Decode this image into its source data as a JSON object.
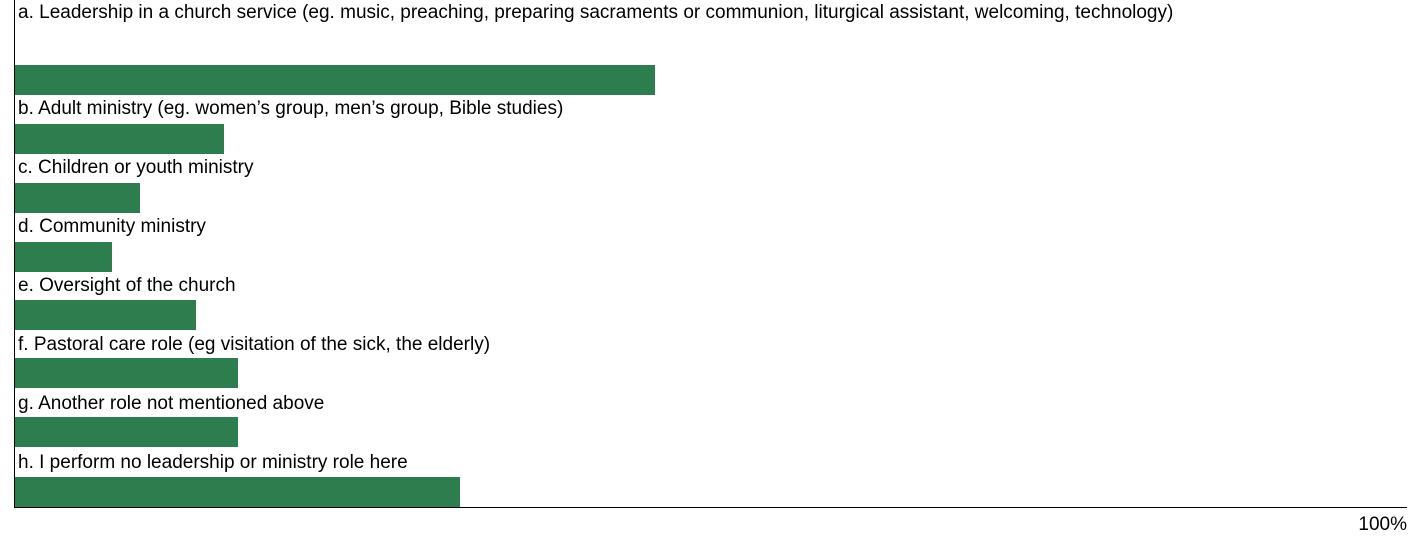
{
  "chart_data": {
    "type": "bar",
    "orientation": "horizontal",
    "categories": [
      "a. Leadership in a church service (eg. music, preaching, preparing sacraments or communion, liturgical assistant, welcoming, technology)",
      "b. Adult ministry (eg. women’s group, men’s group, Bible studies)",
      "c. Children or youth ministry",
      "d. Community ministry",
      "e. Oversight of the church",
      "f. Pastoral care role (eg visitation of the sick, the elderly)",
      "g. Another role not mentioned above",
      "h. I perform no leadership or ministry role here"
    ],
    "values": [
      46,
      15,
      9,
      7,
      13,
      16,
      16,
      32
    ],
    "xlim": [
      0,
      100
    ],
    "x_ticks": [
      "100%"
    ],
    "bar_color": "#2e7d4f",
    "grid": false,
    "legend": "none"
  }
}
